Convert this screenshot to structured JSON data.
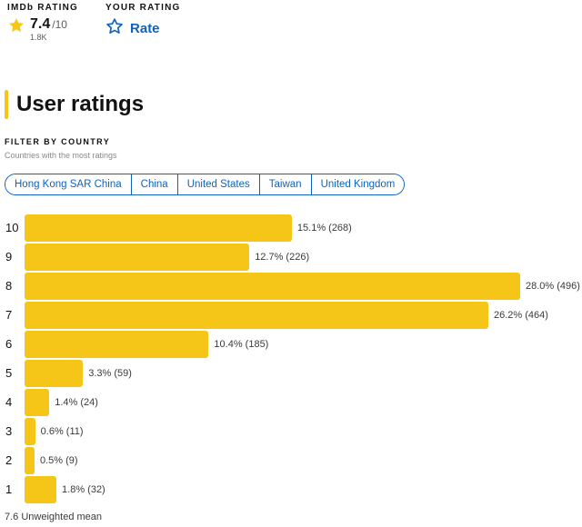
{
  "imdb_rating": {
    "label": "IMDb RATING",
    "value": "7.4",
    "out_of": "/10",
    "count": "1.8K",
    "star_color": "#f5c518"
  },
  "your_rating": {
    "label": "YOUR RATING",
    "button_label": "Rate",
    "icon": "star-outline-icon",
    "color": "#0e63be"
  },
  "section": {
    "title": "User ratings",
    "accent": "#f5c518"
  },
  "filter": {
    "heading": "FILTER BY COUNTRY",
    "subtitle": "Countries with the most ratings",
    "countries": [
      "Hong Kong SAR China",
      "China",
      "United States",
      "Taiwan",
      "United Kingdom"
    ]
  },
  "chart_data": {
    "type": "bar",
    "orientation": "horizontal",
    "categories": [
      "10",
      "9",
      "8",
      "7",
      "6",
      "5",
      "4",
      "3",
      "2",
      "1"
    ],
    "percentages": [
      15.1,
      12.7,
      28.0,
      26.2,
      10.4,
      3.3,
      1.4,
      0.6,
      0.5,
      1.8
    ],
    "counts": [
      268,
      226,
      496,
      464,
      185,
      59,
      24,
      11,
      9,
      32
    ],
    "value_labels": [
      "15.1% (268)",
      "12.7% (226)",
      "28.0% (496)",
      "26.2% (464)",
      "10.4% (185)",
      "3.3% (59)",
      "1.4% (24)",
      "0.6% (11)",
      "0.5% (9)",
      "1.8% (32)"
    ],
    "bar_color": "#f5c518"
  },
  "mean": {
    "text": "7.6 Unweighted mean"
  }
}
